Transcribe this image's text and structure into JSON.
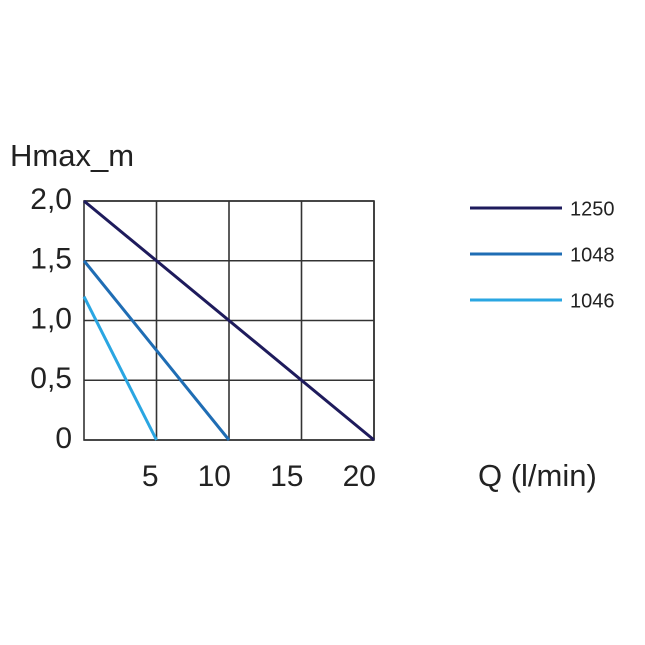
{
  "chart_data": {
    "type": "line",
    "y_label": "Hmax_m",
    "x_label": "Q (l/min)",
    "xlim": [
      0,
      20
    ],
    "xticks": [
      5,
      10,
      15,
      20
    ],
    "ylim": [
      0,
      2
    ],
    "yticks": [
      0,
      {
        "value": 0.5,
        "label": "0,5"
      },
      {
        "value": 1,
        "label": "1,0"
      },
      {
        "value": 1.5,
        "label": "1,5"
      },
      {
        "value": 2,
        "label": "2,0"
      }
    ],
    "grid": true,
    "legend": "right",
    "series": [
      {
        "name": "1250",
        "color": "#1e1b5c",
        "x": [
          0,
          20
        ],
        "values": [
          2,
          0
        ]
      },
      {
        "name": "1048",
        "color": "#1f6db4",
        "x": [
          0,
          10
        ],
        "values": [
          1.5,
          0
        ]
      },
      {
        "name": "1046",
        "color": "#2aa6e2",
        "x": [
          0,
          5
        ],
        "values": [
          1.2,
          0
        ]
      }
    ]
  }
}
